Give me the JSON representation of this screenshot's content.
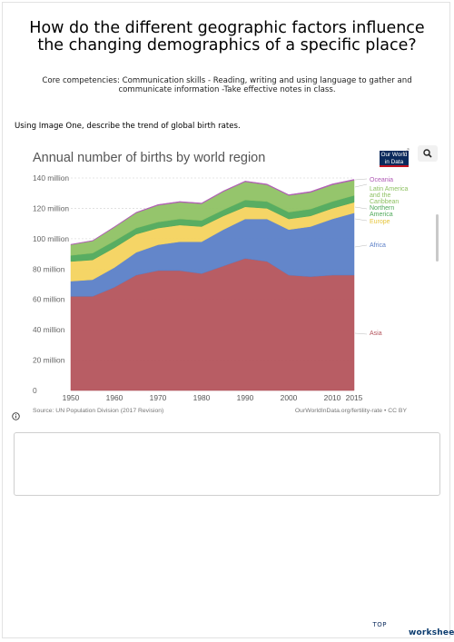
{
  "title": "How do the different geographic factors influence the changing demographics of a specific place?",
  "competencies": "Core competencies: Communication skills - Reading, writing and using language to gather and communicate information -Take effective notes in class.",
  "instruction": "Using Image One, describe the trend of global birth rates.",
  "logo_text": "Our World in Data",
  "brand": {
    "top": "TOP",
    "name": "worksheets"
  },
  "colors": {
    "Asia": "#b4545c",
    "Africa": "#5b7fc7",
    "Europe": "#f4d35e",
    "Northern America": "#4fa95a",
    "Latin America and the Caribbean": "#8fc264",
    "Oceania": "#b05bb5"
  },
  "chart_data": {
    "type": "area",
    "title": "Annual number of births by world region",
    "source": "Source: UN Population Division (2017 Revision)",
    "credit": "OurWorldInData.org/fertility-rate • CC BY",
    "stacked": true,
    "x": [
      1950,
      1955,
      1960,
      1965,
      1970,
      1975,
      1980,
      1985,
      1990,
      1995,
      2000,
      2005,
      2010,
      2015
    ],
    "x_ticks": [
      1950,
      1960,
      1970,
      1980,
      1990,
      2000,
      2010,
      2015
    ],
    "y_ticks": [
      0,
      20,
      40,
      60,
      80,
      100,
      120,
      140
    ],
    "y_tick_labels": [
      "0",
      "20 million",
      "40 million",
      "60 million",
      "80 million",
      "100 million",
      "120 million",
      "140 million"
    ],
    "ylim": [
      0,
      140
    ],
    "series": [
      {
        "name": "Asia",
        "values": [
          62,
          62,
          68,
          76,
          79,
          79,
          77,
          82,
          87,
          85,
          76,
          75,
          76,
          76
        ]
      },
      {
        "name": "Africa",
        "values": [
          10,
          11,
          13,
          15,
          17,
          19,
          21,
          24,
          26,
          28,
          30,
          33,
          37,
          41
        ]
      },
      {
        "name": "Europe",
        "values": [
          13,
          13,
          13,
          12,
          11,
          11,
          10,
          9,
          8,
          7,
          7,
          7,
          7,
          7
        ]
      },
      {
        "name": "Northern America",
        "values": [
          4,
          4.5,
          4.5,
          4,
          4,
          4,
          4,
          4,
          4.5,
          4.5,
          4.5,
          4.5,
          4.5,
          4.5
        ]
      },
      {
        "name": "Latin America and the Caribbean",
        "values": [
          7,
          8,
          9,
          10,
          11,
          11,
          11,
          12,
          12,
          11,
          11,
          11,
          11,
          10
        ]
      },
      {
        "name": "Oceania",
        "values": [
          0.3,
          0.3,
          0.4,
          0.4,
          0.5,
          0.5,
          0.5,
          0.5,
          0.5,
          0.5,
          0.5,
          0.6,
          0.6,
          0.6
        ]
      }
    ],
    "legend": [
      {
        "label": "Oceania",
        "color": "#b05bb5"
      },
      {
        "label": "Latin America",
        "color": "#8fc264"
      },
      {
        "label": "and the",
        "color": "#8fc264"
      },
      {
        "label": "Caribbean",
        "color": "#8fc264"
      },
      {
        "label": "Northern",
        "color": "#4fa95a"
      },
      {
        "label": "America",
        "color": "#4fa95a"
      },
      {
        "label": "Europe",
        "color": "#e6c53d"
      },
      {
        "label": "Africa",
        "color": "#5b7fc7"
      },
      {
        "label": "Asia",
        "color": "#b4545c"
      }
    ],
    "legend_position": "right",
    "grid": true
  }
}
